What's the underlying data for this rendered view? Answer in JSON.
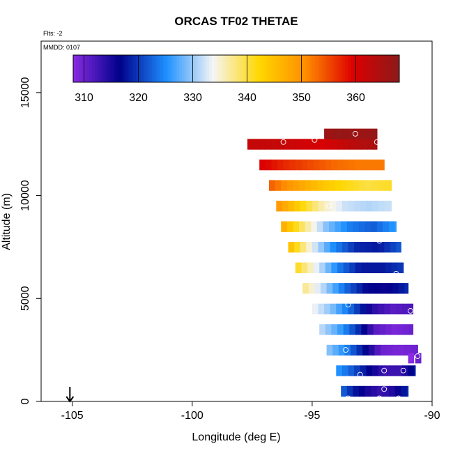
{
  "chart_data": {
    "type": "heatmap",
    "title": "ORCAS TF02 THETAE",
    "xlabel": "Longitude (deg E)",
    "ylabel": "Altitude (m)",
    "xlim": [
      -106.3,
      -90
    ],
    "ylim": [
      0,
      17500
    ],
    "x_ticks": [
      -105,
      -100,
      -95,
      -90
    ],
    "x_tick_labels": [
      "-105",
      "-100",
      "-95",
      "-90"
    ],
    "y_ticks": [
      0,
      5000,
      10000,
      15000
    ],
    "y_tick_labels": [
      "0",
      "5000",
      "10000",
      "15000"
    ],
    "annotations": {
      "flights": "Flts: -2",
      "date": "MMDD: 0107"
    },
    "arrow_marker": {
      "longitude": -105.1,
      "altitude": 0
    },
    "colorbar": {
      "vmin": 308,
      "vmax": 368,
      "ticks": [
        310,
        320,
        330,
        340,
        350,
        360
      ],
      "tick_labels": [
        "310",
        "320",
        "330",
        "340",
        "350",
        "360"
      ],
      "colors": [
        "#8a2be2",
        "#00008b",
        "#1e90ff",
        "#f5f5f5",
        "#ffd700",
        "#ff8c00",
        "#dd0000",
        "#8b1a1a"
      ]
    },
    "field": {
      "description_levels": [
        {
          "alt": 500,
          "lon_start": -93.8,
          "lon_end": -91.0,
          "theta": [
            323,
            318,
            315,
            313,
            315,
            319
          ]
        },
        {
          "alt": 1500,
          "lon_start": -94.0,
          "lon_end": -90.7,
          "theta": [
            326,
            322,
            317,
            313,
            313,
            318
          ]
        },
        {
          "alt": 2500,
          "lon_start": -94.4,
          "lon_end": -90.6,
          "theta": [
            330,
            325,
            318,
            310,
            309,
            310
          ]
        },
        {
          "alt": 3500,
          "lon_start": -94.7,
          "lon_end": -90.8,
          "theta": [
            332,
            327,
            320,
            311,
            309,
            310
          ]
        },
        {
          "alt": 4500,
          "lon_start": -95.0,
          "lon_end": -90.8,
          "theta": [
            334,
            329,
            322,
            314,
            311,
            312
          ]
        },
        {
          "alt": 5500,
          "lon_start": -95.4,
          "lon_end": -91.0,
          "theta": [
            338,
            331,
            323,
            317,
            316,
            319
          ]
        },
        {
          "alt": 6500,
          "lon_start": -95.7,
          "lon_end": -91.2,
          "theta": [
            342,
            333,
            324,
            318,
            318,
            320
          ]
        },
        {
          "alt": 7500,
          "lon_start": -96.0,
          "lon_end": -91.3,
          "theta": [
            346,
            334,
            325,
            319,
            318,
            322
          ]
        },
        {
          "alt": 8500,
          "lon_start": -96.3,
          "lon_end": -91.5,
          "theta": [
            348,
            338,
            329,
            324,
            322,
            326
          ]
        },
        {
          "alt": 9500,
          "lon_start": -96.5,
          "lon_end": -91.7,
          "theta": [
            350,
            343,
            336,
            332,
            331,
            332
          ]
        },
        {
          "alt": 10500,
          "lon_start": -96.8,
          "lon_end": -91.7,
          "theta": [
            354,
            349,
            345,
            342,
            340,
            341
          ]
        },
        {
          "alt": 11500,
          "lon_start": -97.2,
          "lon_end": -92.0,
          "theta": [
            360,
            357,
            355,
            353,
            352,
            352
          ]
        },
        {
          "alt": 12500,
          "lon_start": -97.7,
          "lon_end": -92.3,
          "theta": [
            362,
            362,
            361,
            360,
            363,
            365
          ]
        },
        {
          "alt": 13000,
          "lon_start": -94.5,
          "lon_end": -92.3,
          "theta": [
            366,
            367,
            366,
            367
          ]
        }
      ],
      "extra_cells": [
        {
          "lon": -91.0,
          "alt": 2100,
          "theta": 308
        },
        {
          "lon": -90.7,
          "alt": 2100,
          "theta": 310
        }
      ]
    },
    "circle_markers": [
      {
        "lon": -96.2,
        "alt": 12600
      },
      {
        "lon": -94.9,
        "alt": 12700
      },
      {
        "lon": -93.2,
        "alt": 13000
      },
      {
        "lon": -92.3,
        "alt": 12600
      },
      {
        "lon": -94.3,
        "alt": 9500
      },
      {
        "lon": -92.2,
        "alt": 7800
      },
      {
        "lon": -93.9,
        "alt": 7000
      },
      {
        "lon": -91.5,
        "alt": 6200
      },
      {
        "lon": -93.5,
        "alt": 4700
      },
      {
        "lon": -90.9,
        "alt": 4400
      },
      {
        "lon": -93.6,
        "alt": 2500
      },
      {
        "lon": -90.6,
        "alt": 2200
      },
      {
        "lon": -92.0,
        "alt": 1500
      },
      {
        "lon": -91.2,
        "alt": 1500
      },
      {
        "lon": -93.0,
        "alt": 1300
      },
      {
        "lon": -93.5,
        "alt": 1100
      },
      {
        "lon": -93.0,
        "alt": 1100
      },
      {
        "lon": -92.0,
        "alt": 600
      },
      {
        "lon": -93.5,
        "alt": 150
      },
      {
        "lon": -92.2,
        "alt": 150
      },
      {
        "lon": -91.4,
        "alt": 150
      }
    ]
  }
}
